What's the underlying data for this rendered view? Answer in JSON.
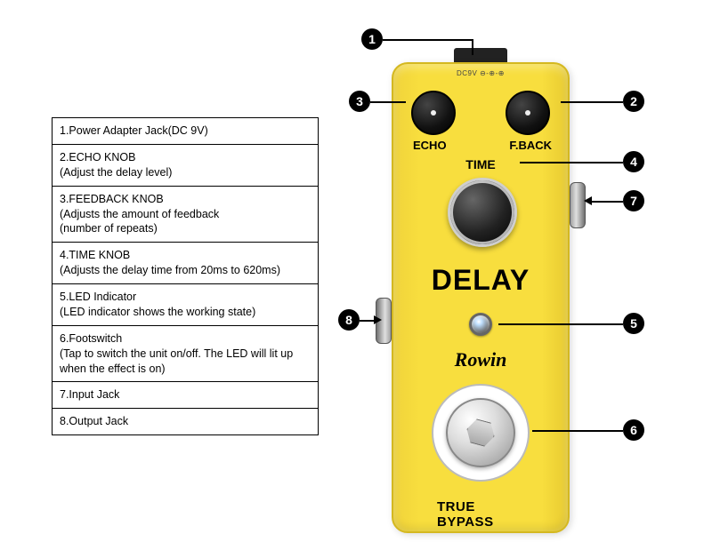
{
  "legend": {
    "rows": [
      "1.Power Adapter Jack(DC 9V)",
      "2.ECHO KNOB\n(Adjust the delay level)",
      "3.FEEDBACK KNOB\n(Adjusts the amount of feedback\n(number of repeats)",
      "4.TIME KNOB\n(Adjusts the delay time from 20ms to 620ms)",
      "5.LED Indicator\n(LED indicator shows the working state)",
      "6.Footswitch\n(Tap to switch the unit on/off. The LED will lit up when the effect is on)",
      "7.Input Jack",
      "8.Output Jack"
    ]
  },
  "pedal": {
    "dc_label": "DC9V ⊖-⊕-⊕",
    "echo_label": "ECHO",
    "fback_label": "F.BACK",
    "time_label": "TIME",
    "name": "DELAY",
    "brand": "Rowin",
    "bypass": "TRUE BYPASS",
    "colors": {
      "body": "#f8de3e",
      "text": "#000000",
      "knob": "#111111"
    },
    "knobs": {
      "echo": {
        "size": 50,
        "color": "#111111"
      },
      "fback": {
        "size": 50,
        "color": "#111111"
      },
      "time": {
        "size": 78,
        "color": "#222222"
      }
    }
  },
  "callouts": {
    "1": "1",
    "2": "2",
    "3": "3",
    "4": "4",
    "5": "5",
    "6": "6",
    "7": "7",
    "8": "8"
  }
}
